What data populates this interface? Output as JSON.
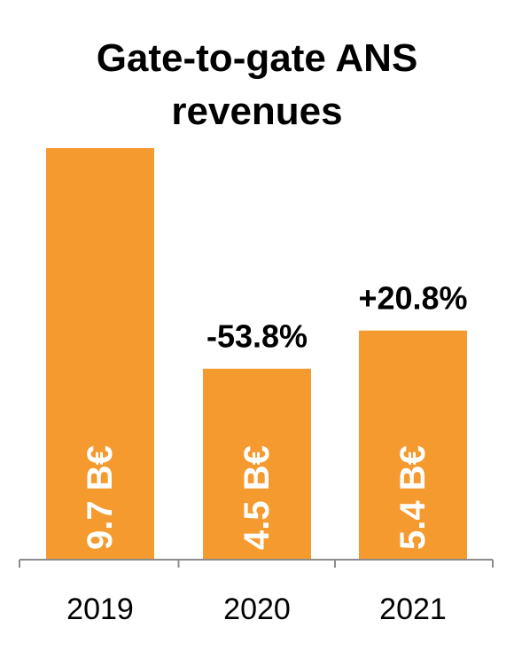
{
  "chart_data": {
    "type": "bar",
    "title": [
      "Gate-to-gate ANS",
      "revenues"
    ],
    "categories": [
      "2019",
      "2020",
      "2021"
    ],
    "values": [
      9.7,
      4.5,
      5.4
    ],
    "value_labels": [
      "9.7 B€",
      "4.5 B€",
      "5.4 B€"
    ],
    "change_labels": [
      "",
      "-53.8%",
      "+20.8%"
    ],
    "ylim": [
      0,
      9.7
    ],
    "grid": false,
    "legend": "none",
    "bar_color": "#F59A2F"
  }
}
